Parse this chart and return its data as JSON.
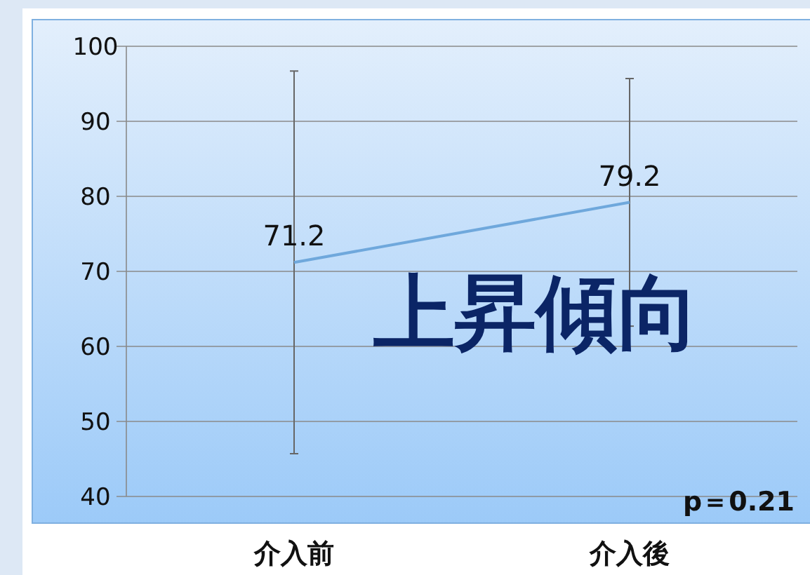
{
  "chart_data": {
    "type": "line",
    "categories": [
      "介入前",
      "介入後"
    ],
    "series": [
      {
        "color": "#6fa8dc",
        "values": [
          71.2,
          79.2
        ],
        "errors": [
          25.5,
          16.5
        ]
      }
    ],
    "ylim": [
      40,
      100
    ],
    "yticks": [
      40,
      50,
      60,
      70,
      80,
      90,
      100
    ],
    "grid": "y",
    "data_labels": true,
    "marker": "none",
    "annotations": [
      "上昇傾向",
      "p＝0.21"
    ]
  }
}
